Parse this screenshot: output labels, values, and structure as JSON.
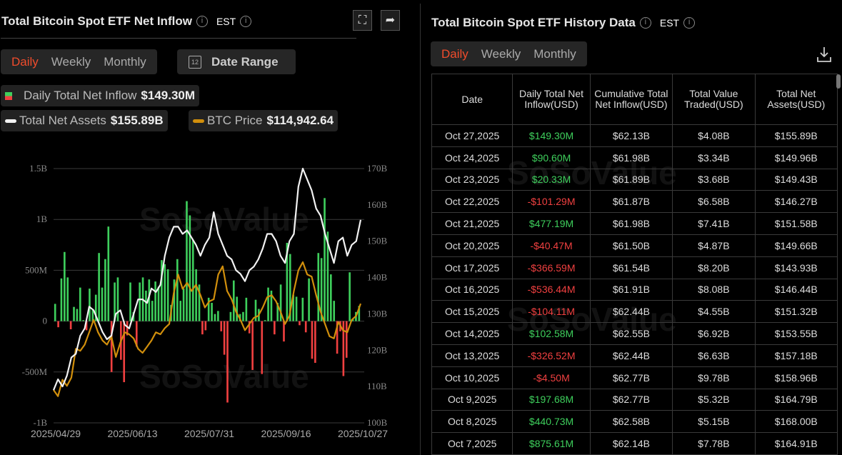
{
  "left": {
    "title": "Total Bitcoin Spot ETF Net Inflow",
    "timezone": "EST",
    "tabs": [
      "Daily",
      "Weekly",
      "Monthly"
    ],
    "active_tab": "Daily",
    "date_range": "Date Range",
    "calendar_num": "12",
    "legend": {
      "inflow_label": "Daily Total Net Inflow",
      "inflow_value": "$149.30M",
      "assets_label": "Total Net Assets",
      "assets_value": "$155.89B",
      "price_label": "BTC Price",
      "price_value": "$114,942.64"
    },
    "watermark": "SoSoValue",
    "watermark_url": "sosovalue.com"
  },
  "chart_data": {
    "type": "bar+line",
    "x_ticks": [
      "2025/04/29",
      "2025/06/13",
      "2025/07/31",
      "2025/09/16",
      "2025/10/27"
    ],
    "y_left_ticks": [
      "1.5B",
      "1B",
      "500M",
      "0",
      "-500M",
      "-1B"
    ],
    "y_left_range_musd": [
      -1000,
      1500
    ],
    "y_right_ticks": [
      "170B",
      "160B",
      "150B",
      "140B",
      "130B",
      "120B",
      "110B",
      "100B"
    ],
    "y_right_range_busd": [
      100,
      170
    ],
    "colors": {
      "positive": "#3ecf5c",
      "negative": "#f04040",
      "assets": "#f2f2f2",
      "price": "#d18f0c"
    },
    "grid": true,
    "daily_net_inflow_musd": [
      170,
      -60,
      420,
      680,
      430,
      -80,
      140,
      120,
      330,
      10,
      -90,
      320,
      110,
      260,
      670,
      330,
      610,
      930,
      -500,
      380,
      430,
      -380,
      -600,
      -140,
      380,
      90,
      -250,
      380,
      430,
      300,
      410,
      200,
      390,
      340,
      600,
      560,
      510,
      160,
      410,
      610,
      200,
      320,
      1180,
      1040,
      800,
      510,
      360,
      -130,
      -90,
      230,
      180,
      70,
      100,
      -100,
      -330,
      -800,
      90,
      400,
      240,
      70,
      90,
      230,
      -120,
      -480,
      210,
      120,
      -520,
      10,
      330,
      300,
      -130,
      180,
      360,
      -200,
      770,
      660,
      260,
      240,
      -40,
      230,
      -110,
      420,
      -370,
      -410,
      670,
      620,
      1210,
      880,
      460,
      200,
      -320,
      -100,
      -540,
      -360,
      480,
      20,
      90,
      150
    ],
    "total_net_assets_busd": [
      109,
      112,
      110,
      113,
      118,
      119,
      124,
      126,
      132,
      131,
      128,
      125,
      123,
      124,
      130,
      131,
      127,
      126,
      130,
      134,
      134,
      133,
      137,
      136,
      138,
      146,
      151,
      154,
      154,
      152,
      153,
      151,
      149,
      146,
      149,
      151,
      158,
      152,
      149,
      146,
      145,
      142,
      141,
      139,
      142,
      143,
      145,
      148,
      152,
      152,
      150,
      146,
      144,
      150,
      152,
      165,
      170,
      167,
      164,
      159,
      157,
      152,
      148,
      144,
      150,
      151,
      146,
      149,
      150,
      155.89
    ],
    "btc_price_usd": [
      94000,
      92500,
      96500,
      95000,
      97000,
      104000,
      103500,
      105000,
      108000,
      111000,
      108000,
      106000,
      105000,
      107000,
      102000,
      105500,
      108000,
      107500,
      106500,
      104000,
      103000,
      104500,
      106000,
      108000,
      107500,
      109000,
      110000,
      117500,
      122000,
      118500,
      120000,
      118000,
      119500,
      117000,
      114000,
      115500,
      116000,
      122000,
      124000,
      118000,
      116000,
      113000,
      111000,
      108500,
      110000,
      111500,
      112000,
      114000,
      116500,
      117000,
      115500,
      113000,
      110000,
      112000,
      118000,
      123000,
      125000,
      122000,
      121500,
      117000,
      113000,
      110000,
      107000,
      106500,
      110500,
      108500,
      108000,
      111000,
      112000,
      114942.64
    ]
  },
  "right": {
    "title": "Total Bitcoin Spot ETF History Data",
    "timezone": "EST",
    "tabs": [
      "Daily",
      "Weekly",
      "Monthly"
    ],
    "active_tab": "Daily",
    "columns": [
      "Date",
      "Daily Total Net Inflow(USD)",
      "Cumulative Total Net Inflow(USD)",
      "Total Value Traded(USD)",
      "Total Net Assets(USD)"
    ],
    "rows": [
      [
        "Oct 27,2025",
        "$149.30M",
        "$62.13B",
        "$4.08B",
        "$155.89B"
      ],
      [
        "Oct 24,2025",
        "$90.60M",
        "$61.98B",
        "$3.34B",
        "$149.96B"
      ],
      [
        "Oct 23,2025",
        "$20.33M",
        "$61.89B",
        "$3.68B",
        "$149.43B"
      ],
      [
        "Oct 22,2025",
        "-$101.29M",
        "$61.87B",
        "$6.58B",
        "$146.27B"
      ],
      [
        "Oct 21,2025",
        "$477.19M",
        "$61.98B",
        "$7.41B",
        "$151.58B"
      ],
      [
        "Oct 20,2025",
        "-$40.47M",
        "$61.50B",
        "$4.87B",
        "$149.66B"
      ],
      [
        "Oct 17,2025",
        "-$366.59M",
        "$61.54B",
        "$8.20B",
        "$143.93B"
      ],
      [
        "Oct 16,2025",
        "-$536.44M",
        "$61.91B",
        "$8.08B",
        "$146.44B"
      ],
      [
        "Oct 15,2025",
        "-$104.11M",
        "$62.44B",
        "$4.55B",
        "$151.32B"
      ],
      [
        "Oct 14,2025",
        "$102.58M",
        "$62.55B",
        "$6.92B",
        "$153.55B"
      ],
      [
        "Oct 13,2025",
        "-$326.52M",
        "$62.44B",
        "$6.63B",
        "$157.18B"
      ],
      [
        "Oct 10,2025",
        "-$4.50M",
        "$62.77B",
        "$9.78B",
        "$158.96B"
      ],
      [
        "Oct 9,2025",
        "$197.68M",
        "$62.77B",
        "$5.32B",
        "$164.79B"
      ],
      [
        "Oct 8,2025",
        "$440.73M",
        "$62.58B",
        "$5.15B",
        "$168.00B"
      ],
      [
        "Oct 7,2025",
        "$875.61M",
        "$62.14B",
        "$7.78B",
        "$164.91B"
      ]
    ]
  }
}
